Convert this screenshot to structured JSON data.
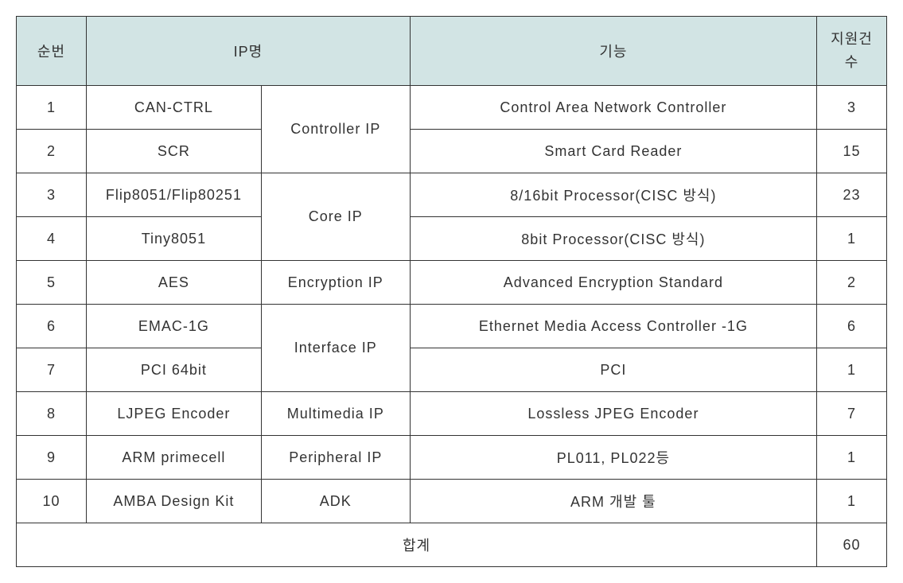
{
  "table": {
    "header_bg": "#d2e4e4",
    "border_color": "#333333",
    "text_color": "#333333",
    "header_fontsize": 18,
    "cell_fontsize": 18,
    "columns": {
      "num": "순번",
      "ip_name": "IP명",
      "function": "기능",
      "count_line1": "지원건",
      "count_line2": "수"
    },
    "rows": [
      {
        "num": "1",
        "ip": "CAN-CTRL",
        "cat": "Controller IP",
        "func": "Control Area Network Controller",
        "count": "3"
      },
      {
        "num": "2",
        "ip": "SCR",
        "cat": "Controller IP",
        "func": "Smart Card Reader",
        "count": "15"
      },
      {
        "num": "3",
        "ip": "Flip8051/Flip80251",
        "cat": "Core IP",
        "func": "8/16bit Processor(CISC 방식)",
        "count": "23"
      },
      {
        "num": "4",
        "ip": "Tiny8051",
        "cat": "Core IP",
        "func": "8bit Processor(CISC 방식)",
        "count": "1"
      },
      {
        "num": "5",
        "ip": "AES",
        "cat": "Encryption  IP",
        "func": "Advanced Encryption Standard",
        "count": "2"
      },
      {
        "num": "6",
        "ip": "EMAC-1G",
        "cat": "Interface IP",
        "func": "Ethernet Media Access Controller -1G",
        "count": "6"
      },
      {
        "num": "7",
        "ip": "PCI 64bit",
        "cat": "Interface IP",
        "func": "PCI",
        "count": "1"
      },
      {
        "num": "8",
        "ip": "LJPEG Encoder",
        "cat": "Multimedia IP",
        "func": "Lossless JPEG Encoder",
        "count": "7"
      },
      {
        "num": "9",
        "ip": "ARM primecell",
        "cat": "Peripheral IP",
        "func": "PL011, PL022등",
        "count": "1"
      },
      {
        "num": "10",
        "ip": "AMBA Design Kit",
        "cat": "ADK",
        "func": "ARM 개발 툴",
        "count": "1"
      }
    ],
    "total": {
      "label": "합계",
      "value": "60"
    }
  }
}
